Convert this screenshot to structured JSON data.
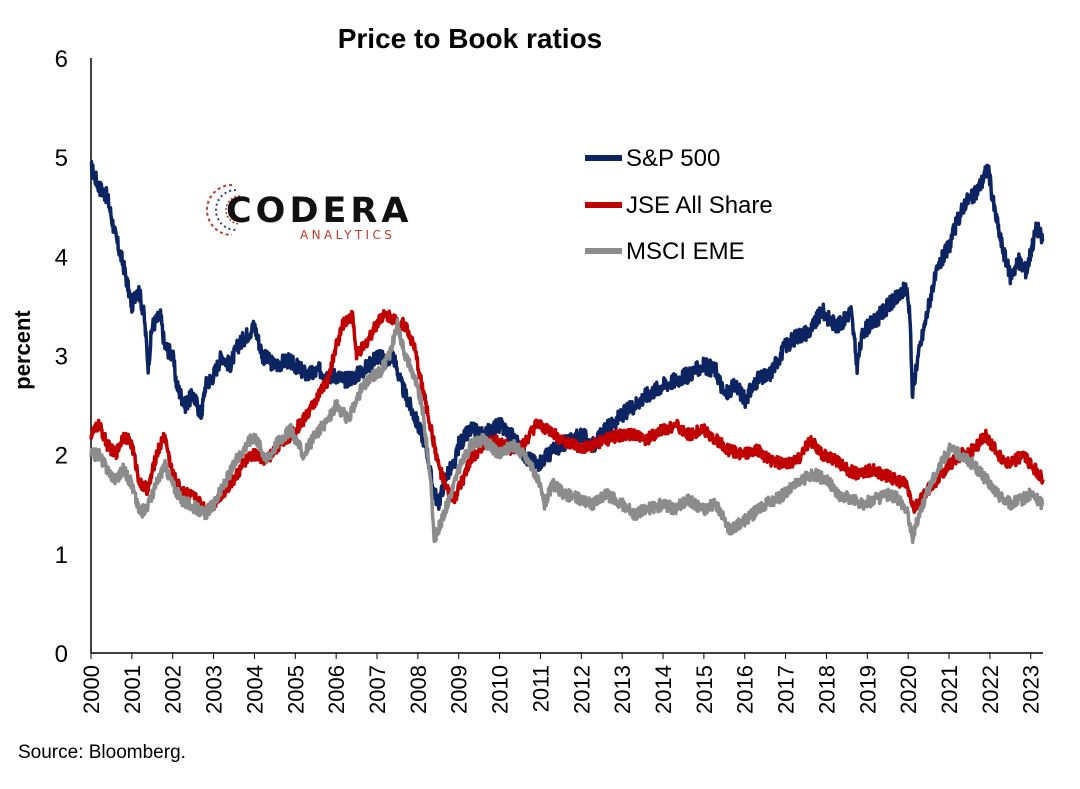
{
  "logo": {
    "word": "CODERA",
    "sub": "ANALYTICS"
  },
  "source": "Source: Bloomberg.",
  "colors": {
    "sp500": "#0c2461",
    "jse": "#c00000",
    "msci": "#8c8c8c"
  },
  "chart_data": {
    "type": "line",
    "title": "Price to Book ratios",
    "xlabel": "",
    "ylabel": "percent",
    "xlim": [
      2000,
      2023.3
    ],
    "ylim": [
      0,
      6
    ],
    "yticks": [
      "0",
      "1",
      "2",
      "3",
      "4",
      "5",
      "6"
    ],
    "xticks": [
      "2000",
      "2001",
      "2002",
      "2003",
      "2004",
      "2005",
      "2006",
      "2007",
      "2008",
      "2009",
      "2010",
      "2011",
      "2012",
      "2013",
      "2014",
      "2015",
      "2016",
      "2017",
      "2018",
      "2019",
      "2020",
      "2021",
      "2022",
      "2023"
    ],
    "grid": false,
    "legend": "top-right",
    "series": [
      {
        "name": "S&P 500",
        "points": [
          [
            2000.0,
            4.9
          ],
          [
            2000.2,
            4.7
          ],
          [
            2000.4,
            4.6
          ],
          [
            2000.6,
            4.2
          ],
          [
            2000.8,
            3.9
          ],
          [
            2001.0,
            3.5
          ],
          [
            2001.15,
            3.7
          ],
          [
            2001.3,
            3.4
          ],
          [
            2001.4,
            2.9
          ],
          [
            2001.5,
            3.3
          ],
          [
            2001.7,
            3.4
          ],
          [
            2001.8,
            3.1
          ],
          [
            2002.0,
            3.0
          ],
          [
            2002.1,
            2.7
          ],
          [
            2002.3,
            2.5
          ],
          [
            2002.5,
            2.6
          ],
          [
            2002.6,
            2.5
          ],
          [
            2002.7,
            2.4
          ],
          [
            2002.8,
            2.7
          ],
          [
            2003.0,
            2.8
          ],
          [
            2003.2,
            3.0
          ],
          [
            2003.4,
            2.9
          ],
          [
            2003.6,
            3.1
          ],
          [
            2003.8,
            3.2
          ],
          [
            2004.0,
            3.3
          ],
          [
            2004.2,
            3.0
          ],
          [
            2004.5,
            2.9
          ],
          [
            2004.8,
            2.95
          ],
          [
            2005.0,
            2.9
          ],
          [
            2005.3,
            2.8
          ],
          [
            2005.6,
            2.85
          ],
          [
            2005.8,
            2.8
          ],
          [
            2006.0,
            2.8
          ],
          [
            2006.2,
            2.75
          ],
          [
            2006.5,
            2.8
          ],
          [
            2006.8,
            2.9
          ],
          [
            2007.0,
            3.0
          ],
          [
            2007.2,
            2.95
          ],
          [
            2007.4,
            3.0
          ],
          [
            2007.6,
            2.7
          ],
          [
            2007.8,
            2.5
          ],
          [
            2008.0,
            2.3
          ],
          [
            2008.2,
            2.1
          ],
          [
            2008.35,
            1.7
          ],
          [
            2008.5,
            1.5
          ],
          [
            2008.7,
            1.8
          ],
          [
            2008.9,
            1.9
          ],
          [
            2009.0,
            2.1
          ],
          [
            2009.3,
            2.25
          ],
          [
            2009.6,
            2.2
          ],
          [
            2010.0,
            2.3
          ],
          [
            2010.3,
            2.2
          ],
          [
            2010.6,
            2.0
          ],
          [
            2010.9,
            1.9
          ],
          [
            2011.2,
            2.0
          ],
          [
            2011.5,
            2.1
          ],
          [
            2011.8,
            2.15
          ],
          [
            2012.0,
            2.2
          ],
          [
            2012.3,
            2.1
          ],
          [
            2012.6,
            2.25
          ],
          [
            2013.0,
            2.4
          ],
          [
            2013.3,
            2.5
          ],
          [
            2013.6,
            2.6
          ],
          [
            2014.0,
            2.7
          ],
          [
            2014.3,
            2.75
          ],
          [
            2014.6,
            2.8
          ],
          [
            2015.0,
            2.9
          ],
          [
            2015.3,
            2.85
          ],
          [
            2015.5,
            2.6
          ],
          [
            2015.8,
            2.7
          ],
          [
            2016.0,
            2.55
          ],
          [
            2016.3,
            2.75
          ],
          [
            2016.6,
            2.8
          ],
          [
            2016.8,
            2.95
          ],
          [
            2017.0,
            3.1
          ],
          [
            2017.3,
            3.2
          ],
          [
            2017.6,
            3.25
          ],
          [
            2017.9,
            3.45
          ],
          [
            2018.1,
            3.35
          ],
          [
            2018.3,
            3.3
          ],
          [
            2018.6,
            3.45
          ],
          [
            2018.75,
            2.9
          ],
          [
            2018.9,
            3.25
          ],
          [
            2019.2,
            3.35
          ],
          [
            2019.5,
            3.5
          ],
          [
            2019.8,
            3.6
          ],
          [
            2019.95,
            3.7
          ],
          [
            2020.05,
            3.4
          ],
          [
            2020.1,
            2.6
          ],
          [
            2020.2,
            2.9
          ],
          [
            2020.4,
            3.3
          ],
          [
            2020.6,
            3.7
          ],
          [
            2020.8,
            3.95
          ],
          [
            2021.0,
            4.1
          ],
          [
            2021.2,
            4.35
          ],
          [
            2021.4,
            4.55
          ],
          [
            2021.6,
            4.6
          ],
          [
            2021.8,
            4.75
          ],
          [
            2021.95,
            4.9
          ],
          [
            2022.1,
            4.5
          ],
          [
            2022.3,
            4.1
          ],
          [
            2022.5,
            3.8
          ],
          [
            2022.7,
            3.95
          ],
          [
            2022.9,
            3.85
          ],
          [
            2023.0,
            4.05
          ],
          [
            2023.15,
            4.3
          ],
          [
            2023.3,
            4.15
          ]
        ]
      },
      {
        "name": "JSE All Share",
        "points": [
          [
            2000.0,
            2.2
          ],
          [
            2000.2,
            2.3
          ],
          [
            2000.4,
            2.1
          ],
          [
            2000.6,
            2.0
          ],
          [
            2000.8,
            2.2
          ],
          [
            2001.0,
            2.1
          ],
          [
            2001.2,
            1.7
          ],
          [
            2001.4,
            1.65
          ],
          [
            2001.6,
            2.0
          ],
          [
            2001.8,
            2.2
          ],
          [
            2002.0,
            1.8
          ],
          [
            2002.2,
            1.65
          ],
          [
            2002.4,
            1.6
          ],
          [
            2002.6,
            1.55
          ],
          [
            2002.8,
            1.45
          ],
          [
            2003.0,
            1.5
          ],
          [
            2003.2,
            1.6
          ],
          [
            2003.5,
            1.75
          ],
          [
            2003.8,
            1.95
          ],
          [
            2004.0,
            2.0
          ],
          [
            2004.3,
            1.95
          ],
          [
            2004.6,
            2.1
          ],
          [
            2004.9,
            2.2
          ],
          [
            2005.2,
            2.35
          ],
          [
            2005.5,
            2.55
          ],
          [
            2005.8,
            2.75
          ],
          [
            2006.0,
            3.1
          ],
          [
            2006.2,
            3.35
          ],
          [
            2006.4,
            3.4
          ],
          [
            2006.5,
            3.0
          ],
          [
            2006.7,
            3.1
          ],
          [
            2006.9,
            3.25
          ],
          [
            2007.1,
            3.4
          ],
          [
            2007.3,
            3.4
          ],
          [
            2007.5,
            3.35
          ],
          [
            2007.7,
            3.3
          ],
          [
            2007.9,
            3.1
          ],
          [
            2008.1,
            2.7
          ],
          [
            2008.3,
            2.3
          ],
          [
            2008.5,
            1.9
          ],
          [
            2008.7,
            1.65
          ],
          [
            2008.9,
            1.55
          ],
          [
            2009.1,
            1.75
          ],
          [
            2009.3,
            1.95
          ],
          [
            2009.6,
            2.1
          ],
          [
            2010.0,
            2.15
          ],
          [
            2010.3,
            2.05
          ],
          [
            2010.6,
            2.1
          ],
          [
            2010.9,
            2.3
          ],
          [
            2011.2,
            2.25
          ],
          [
            2011.5,
            2.15
          ],
          [
            2011.8,
            2.1
          ],
          [
            2012.0,
            2.05
          ],
          [
            2012.3,
            2.1
          ],
          [
            2012.6,
            2.15
          ],
          [
            2013.0,
            2.2
          ],
          [
            2013.3,
            2.2
          ],
          [
            2013.6,
            2.15
          ],
          [
            2014.0,
            2.25
          ],
          [
            2014.3,
            2.3
          ],
          [
            2014.6,
            2.2
          ],
          [
            2015.0,
            2.25
          ],
          [
            2015.3,
            2.15
          ],
          [
            2015.6,
            2.05
          ],
          [
            2016.0,
            2.0
          ],
          [
            2016.3,
            2.05
          ],
          [
            2016.6,
            1.95
          ],
          [
            2017.0,
            1.9
          ],
          [
            2017.3,
            1.95
          ],
          [
            2017.6,
            2.15
          ],
          [
            2017.9,
            2.0
          ],
          [
            2018.2,
            1.95
          ],
          [
            2018.5,
            1.85
          ],
          [
            2018.8,
            1.8
          ],
          [
            2019.1,
            1.85
          ],
          [
            2019.4,
            1.8
          ],
          [
            2019.7,
            1.75
          ],
          [
            2019.95,
            1.7
          ],
          [
            2020.15,
            1.45
          ],
          [
            2020.4,
            1.6
          ],
          [
            2020.7,
            1.75
          ],
          [
            2021.0,
            1.9
          ],
          [
            2021.3,
            2.0
          ],
          [
            2021.6,
            2.05
          ],
          [
            2021.9,
            2.2
          ],
          [
            2022.2,
            2.0
          ],
          [
            2022.5,
            1.9
          ],
          [
            2022.8,
            2.0
          ],
          [
            2023.0,
            1.9
          ],
          [
            2023.2,
            1.8
          ],
          [
            2023.3,
            1.75
          ]
        ]
      },
      {
        "name": "MSCI EME",
        "points": [
          [
            2000.0,
            2.0
          ],
          [
            2000.2,
            2.0
          ],
          [
            2000.4,
            1.85
          ],
          [
            2000.6,
            1.75
          ],
          [
            2000.8,
            1.85
          ],
          [
            2001.0,
            1.7
          ],
          [
            2001.2,
            1.4
          ],
          [
            2001.4,
            1.5
          ],
          [
            2001.6,
            1.7
          ],
          [
            2001.8,
            1.9
          ],
          [
            2002.0,
            1.7
          ],
          [
            2002.2,
            1.55
          ],
          [
            2002.4,
            1.5
          ],
          [
            2002.6,
            1.45
          ],
          [
            2002.8,
            1.4
          ],
          [
            2003.0,
            1.5
          ],
          [
            2003.2,
            1.65
          ],
          [
            2003.5,
            1.9
          ],
          [
            2003.8,
            2.1
          ],
          [
            2004.0,
            2.2
          ],
          [
            2004.3,
            1.95
          ],
          [
            2004.6,
            2.15
          ],
          [
            2004.9,
            2.25
          ],
          [
            2005.2,
            2.0
          ],
          [
            2005.5,
            2.2
          ],
          [
            2005.8,
            2.35
          ],
          [
            2006.0,
            2.5
          ],
          [
            2006.3,
            2.35
          ],
          [
            2006.6,
            2.65
          ],
          [
            2006.9,
            2.8
          ],
          [
            2007.1,
            2.85
          ],
          [
            2007.3,
            3.0
          ],
          [
            2007.5,
            3.3
          ],
          [
            2007.7,
            3.0
          ],
          [
            2007.9,
            2.8
          ],
          [
            2008.1,
            2.5
          ],
          [
            2008.3,
            1.8
          ],
          [
            2008.4,
            1.15
          ],
          [
            2008.6,
            1.35
          ],
          [
            2008.8,
            1.6
          ],
          [
            2009.0,
            1.85
          ],
          [
            2009.3,
            2.1
          ],
          [
            2009.6,
            2.15
          ],
          [
            2010.0,
            2.0
          ],
          [
            2010.3,
            2.1
          ],
          [
            2010.6,
            2.0
          ],
          [
            2010.9,
            1.8
          ],
          [
            2011.1,
            1.5
          ],
          [
            2011.3,
            1.7
          ],
          [
            2011.6,
            1.6
          ],
          [
            2012.0,
            1.55
          ],
          [
            2012.3,
            1.5
          ],
          [
            2012.6,
            1.6
          ],
          [
            2013.0,
            1.5
          ],
          [
            2013.3,
            1.4
          ],
          [
            2013.6,
            1.45
          ],
          [
            2014.0,
            1.5
          ],
          [
            2014.3,
            1.45
          ],
          [
            2014.6,
            1.55
          ],
          [
            2015.0,
            1.45
          ],
          [
            2015.3,
            1.5
          ],
          [
            2015.6,
            1.25
          ],
          [
            2015.9,
            1.3
          ],
          [
            2016.2,
            1.4
          ],
          [
            2016.5,
            1.5
          ],
          [
            2016.8,
            1.55
          ],
          [
            2017.1,
            1.65
          ],
          [
            2017.4,
            1.75
          ],
          [
            2017.7,
            1.8
          ],
          [
            2018.0,
            1.75
          ],
          [
            2018.3,
            1.6
          ],
          [
            2018.6,
            1.55
          ],
          [
            2018.9,
            1.5
          ],
          [
            2019.2,
            1.55
          ],
          [
            2019.5,
            1.6
          ],
          [
            2019.8,
            1.55
          ],
          [
            2020.0,
            1.4
          ],
          [
            2020.1,
            1.15
          ],
          [
            2020.3,
            1.45
          ],
          [
            2020.6,
            1.75
          ],
          [
            2020.8,
            1.9
          ],
          [
            2021.0,
            2.05
          ],
          [
            2021.3,
            2.0
          ],
          [
            2021.6,
            1.9
          ],
          [
            2021.9,
            1.75
          ],
          [
            2022.2,
            1.6
          ],
          [
            2022.5,
            1.5
          ],
          [
            2022.8,
            1.55
          ],
          [
            2023.0,
            1.6
          ],
          [
            2023.3,
            1.5
          ]
        ]
      }
    ]
  }
}
